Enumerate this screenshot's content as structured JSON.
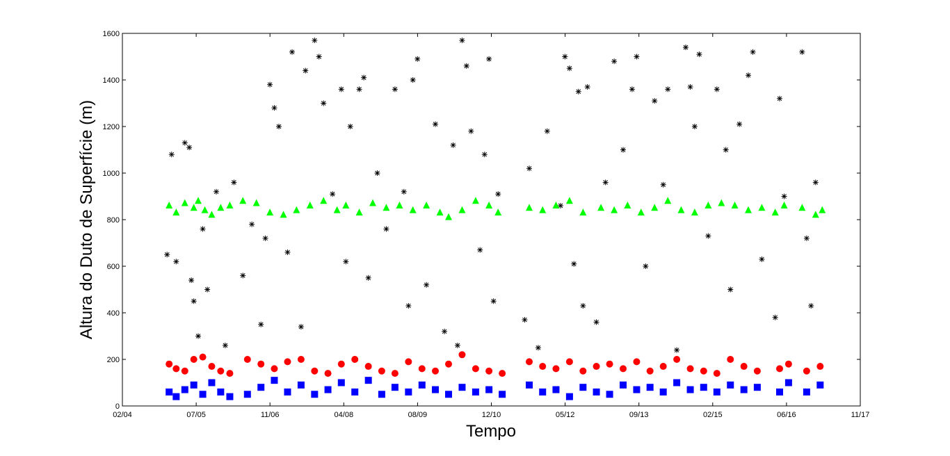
{
  "chart_data": {
    "type": "scatter",
    "title": "",
    "xlabel": "Tempo",
    "ylabel": "Altura do Duto de Superfície (m)",
    "xlim": [
      "2004-02-01",
      "2017-11-01"
    ],
    "ylim": [
      0,
      1600
    ],
    "x_ticks": [
      "02/04",
      "07/05",
      "11/06",
      "04/08",
      "08/09",
      "12/10",
      "05/12",
      "09/13",
      "02/15",
      "06/16",
      "11/17"
    ],
    "y_ticks": [
      0,
      200,
      400,
      600,
      800,
      1000,
      1200,
      1400,
      1600
    ],
    "grid": false,
    "legend": "none",
    "colors": {
      "green": "#00ff00",
      "red": "#ff0000",
      "blue": "#0000ff",
      "black": "#000000"
    },
    "series": [
      {
        "marker": "triangle",
        "color": "#00ff00",
        "points": [
          [
            "2004-12-15",
            860
          ],
          [
            "2005-02-01",
            830
          ],
          [
            "2005-04-01",
            870
          ],
          [
            "2005-06-01",
            850
          ],
          [
            "2005-07-01",
            880
          ],
          [
            "2005-08-15",
            840
          ],
          [
            "2005-10-01",
            820
          ],
          [
            "2005-12-01",
            850
          ],
          [
            "2006-02-01",
            860
          ],
          [
            "2006-05-01",
            880
          ],
          [
            "2006-08-01",
            870
          ],
          [
            "2006-11-01",
            830
          ],
          [
            "2007-02-01",
            820
          ],
          [
            "2007-05-01",
            840
          ],
          [
            "2007-08-01",
            860
          ],
          [
            "2007-11-01",
            880
          ],
          [
            "2008-02-01",
            840
          ],
          [
            "2008-04-01",
            860
          ],
          [
            "2008-07-01",
            830
          ],
          [
            "2008-10-01",
            870
          ],
          [
            "2009-01-01",
            850
          ],
          [
            "2009-04-01",
            860
          ],
          [
            "2009-07-01",
            840
          ],
          [
            "2009-10-01",
            860
          ],
          [
            "2010-01-01",
            830
          ],
          [
            "2010-03-01",
            810
          ],
          [
            "2010-06-01",
            840
          ],
          [
            "2010-09-01",
            880
          ],
          [
            "2010-12-01",
            860
          ],
          [
            "2011-02-01",
            830
          ],
          [
            "2011-09-01",
            850
          ],
          [
            "2011-12-01",
            840
          ],
          [
            "2012-03-01",
            860
          ],
          [
            "2012-06-01",
            880
          ],
          [
            "2012-09-01",
            830
          ],
          [
            "2013-01-01",
            850
          ],
          [
            "2013-04-01",
            840
          ],
          [
            "2013-07-01",
            860
          ],
          [
            "2013-10-01",
            830
          ],
          [
            "2014-01-01",
            850
          ],
          [
            "2014-04-01",
            880
          ],
          [
            "2014-07-01",
            840
          ],
          [
            "2014-10-01",
            830
          ],
          [
            "2015-01-01",
            860
          ],
          [
            "2015-04-01",
            870
          ],
          [
            "2015-07-01",
            860
          ],
          [
            "2015-10-01",
            840
          ],
          [
            "2016-01-01",
            850
          ],
          [
            "2016-04-01",
            830
          ],
          [
            "2016-06-01",
            860
          ],
          [
            "2016-10-01",
            850
          ],
          [
            "2017-01-01",
            820
          ],
          [
            "2017-02-15",
            840
          ]
        ]
      },
      {
        "marker": "circle",
        "color": "#ff0000",
        "points": [
          [
            "2004-12-15",
            180
          ],
          [
            "2005-02-01",
            160
          ],
          [
            "2005-04-01",
            150
          ],
          [
            "2005-06-01",
            200
          ],
          [
            "2005-08-01",
            210
          ],
          [
            "2005-10-01",
            170
          ],
          [
            "2005-12-01",
            150
          ],
          [
            "2006-02-01",
            140
          ],
          [
            "2006-06-01",
            200
          ],
          [
            "2006-09-01",
            180
          ],
          [
            "2006-12-01",
            160
          ],
          [
            "2007-03-01",
            190
          ],
          [
            "2007-06-01",
            200
          ],
          [
            "2007-09-01",
            150
          ],
          [
            "2007-12-01",
            140
          ],
          [
            "2008-03-01",
            180
          ],
          [
            "2008-06-01",
            200
          ],
          [
            "2008-09-01",
            170
          ],
          [
            "2008-12-01",
            150
          ],
          [
            "2009-03-01",
            140
          ],
          [
            "2009-06-01",
            190
          ],
          [
            "2009-09-01",
            160
          ],
          [
            "2009-12-01",
            150
          ],
          [
            "2010-03-01",
            180
          ],
          [
            "2010-06-01",
            220
          ],
          [
            "2010-09-01",
            160
          ],
          [
            "2010-12-01",
            150
          ],
          [
            "2011-03-01",
            140
          ],
          [
            "2011-09-01",
            190
          ],
          [
            "2011-12-01",
            170
          ],
          [
            "2012-03-01",
            160
          ],
          [
            "2012-06-01",
            190
          ],
          [
            "2012-09-01",
            150
          ],
          [
            "2012-12-01",
            170
          ],
          [
            "2013-03-01",
            180
          ],
          [
            "2013-06-01",
            160
          ],
          [
            "2013-09-01",
            190
          ],
          [
            "2013-12-01",
            150
          ],
          [
            "2014-03-01",
            170
          ],
          [
            "2014-06-01",
            200
          ],
          [
            "2014-09-01",
            160
          ],
          [
            "2014-12-01",
            150
          ],
          [
            "2015-03-01",
            140
          ],
          [
            "2015-06-01",
            200
          ],
          [
            "2015-09-01",
            170
          ],
          [
            "2015-12-01",
            150
          ],
          [
            "2016-05-01",
            160
          ],
          [
            "2016-07-01",
            180
          ],
          [
            "2016-11-01",
            150
          ],
          [
            "2017-02-01",
            170
          ]
        ]
      },
      {
        "marker": "square",
        "color": "#0000ff",
        "points": [
          [
            "2004-12-15",
            60
          ],
          [
            "2005-02-01",
            40
          ],
          [
            "2005-04-01",
            70
          ],
          [
            "2005-06-01",
            90
          ],
          [
            "2005-08-01",
            50
          ],
          [
            "2005-10-01",
            100
          ],
          [
            "2005-12-01",
            60
          ],
          [
            "2006-02-01",
            40
          ],
          [
            "2006-06-01",
            50
          ],
          [
            "2006-09-01",
            80
          ],
          [
            "2006-12-01",
            110
          ],
          [
            "2007-03-01",
            60
          ],
          [
            "2007-06-01",
            90
          ],
          [
            "2007-09-01",
            50
          ],
          [
            "2007-12-01",
            70
          ],
          [
            "2008-03-01",
            100
          ],
          [
            "2008-06-01",
            60
          ],
          [
            "2008-09-01",
            110
          ],
          [
            "2008-12-01",
            50
          ],
          [
            "2009-03-01",
            80
          ],
          [
            "2009-06-01",
            60
          ],
          [
            "2009-09-01",
            90
          ],
          [
            "2009-12-01",
            70
          ],
          [
            "2010-03-01",
            50
          ],
          [
            "2010-06-01",
            80
          ],
          [
            "2010-09-01",
            60
          ],
          [
            "2010-12-01",
            70
          ],
          [
            "2011-03-01",
            50
          ],
          [
            "2011-09-01",
            90
          ],
          [
            "2011-12-01",
            60
          ],
          [
            "2012-03-01",
            70
          ],
          [
            "2012-06-01",
            40
          ],
          [
            "2012-09-01",
            80
          ],
          [
            "2012-12-01",
            60
          ],
          [
            "2013-03-01",
            50
          ],
          [
            "2013-06-01",
            90
          ],
          [
            "2013-09-01",
            70
          ],
          [
            "2013-12-01",
            80
          ],
          [
            "2014-03-01",
            60
          ],
          [
            "2014-06-01",
            100
          ],
          [
            "2014-09-01",
            70
          ],
          [
            "2014-12-01",
            80
          ],
          [
            "2015-03-01",
            60
          ],
          [
            "2015-06-01",
            90
          ],
          [
            "2015-09-01",
            70
          ],
          [
            "2015-12-01",
            80
          ],
          [
            "2016-05-01",
            60
          ],
          [
            "2016-07-01",
            100
          ],
          [
            "2016-11-01",
            60
          ],
          [
            "2017-02-01",
            90
          ]
        ]
      },
      {
        "marker": "asterisk",
        "color": "#000000",
        "points": [
          [
            "2004-12-01",
            650
          ],
          [
            "2005-01-01",
            1080
          ],
          [
            "2005-02-01",
            620
          ],
          [
            "2005-04-01",
            1130
          ],
          [
            "2005-05-01",
            1110
          ],
          [
            "2005-05-15",
            540
          ],
          [
            "2005-06-01",
            450
          ],
          [
            "2005-07-01",
            300
          ],
          [
            "2005-08-01",
            760
          ],
          [
            "2005-09-01",
            500
          ],
          [
            "2005-11-01",
            920
          ],
          [
            "2006-01-01",
            260
          ],
          [
            "2006-03-01",
            960
          ],
          [
            "2006-05-01",
            560
          ],
          [
            "2006-07-01",
            780
          ],
          [
            "2006-09-01",
            350
          ],
          [
            "2006-10-01",
            720
          ],
          [
            "2006-11-01",
            1380
          ],
          [
            "2006-12-01",
            1280
          ],
          [
            "2007-01-01",
            1200
          ],
          [
            "2007-03-01",
            660
          ],
          [
            "2007-04-01",
            1520
          ],
          [
            "2007-06-01",
            340
          ],
          [
            "2007-07-01",
            1440
          ],
          [
            "2007-09-01",
            1570
          ],
          [
            "2007-10-01",
            1500
          ],
          [
            "2007-11-01",
            1300
          ],
          [
            "2008-01-01",
            910
          ],
          [
            "2008-03-01",
            1360
          ],
          [
            "2008-04-01",
            620
          ],
          [
            "2008-05-01",
            1200
          ],
          [
            "2008-07-01",
            1360
          ],
          [
            "2008-08-01",
            1410
          ],
          [
            "2008-09-01",
            550
          ],
          [
            "2008-11-01",
            1000
          ],
          [
            "2009-01-01",
            760
          ],
          [
            "2009-03-01",
            1360
          ],
          [
            "2009-05-01",
            920
          ],
          [
            "2009-06-01",
            430
          ],
          [
            "2009-07-01",
            1400
          ],
          [
            "2009-08-01",
            1490
          ],
          [
            "2009-10-01",
            520
          ],
          [
            "2009-12-01",
            1210
          ],
          [
            "2010-02-01",
            320
          ],
          [
            "2010-04-01",
            1120
          ],
          [
            "2010-05-01",
            260
          ],
          [
            "2010-06-01",
            1570
          ],
          [
            "2010-07-01",
            1460
          ],
          [
            "2010-08-01",
            1180
          ],
          [
            "2010-10-01",
            670
          ],
          [
            "2010-11-01",
            1080
          ],
          [
            "2010-12-01",
            1490
          ],
          [
            "2011-01-01",
            450
          ],
          [
            "2011-02-01",
            910
          ],
          [
            "2011-08-01",
            370
          ],
          [
            "2011-09-01",
            1020
          ],
          [
            "2011-11-01",
            250
          ],
          [
            "2012-01-01",
            1180
          ],
          [
            "2012-04-01",
            860
          ],
          [
            "2012-05-01",
            1500
          ],
          [
            "2012-06-01",
            1450
          ],
          [
            "2012-07-01",
            610
          ],
          [
            "2012-08-01",
            1350
          ],
          [
            "2012-09-01",
            430
          ],
          [
            "2012-10-01",
            1370
          ],
          [
            "2012-12-01",
            360
          ],
          [
            "2013-02-01",
            960
          ],
          [
            "2013-04-01",
            1480
          ],
          [
            "2013-06-01",
            1100
          ],
          [
            "2013-08-01",
            1360
          ],
          [
            "2013-09-01",
            1500
          ],
          [
            "2013-11-01",
            600
          ],
          [
            "2014-01-01",
            1310
          ],
          [
            "2014-03-01",
            950
          ],
          [
            "2014-04-01",
            1360
          ],
          [
            "2014-06-01",
            240
          ],
          [
            "2014-08-01",
            1540
          ],
          [
            "2014-09-01",
            1370
          ],
          [
            "2014-10-01",
            1200
          ],
          [
            "2014-11-01",
            1510
          ],
          [
            "2015-01-01",
            730
          ],
          [
            "2015-03-01",
            1360
          ],
          [
            "2015-05-01",
            1100
          ],
          [
            "2015-06-01",
            500
          ],
          [
            "2015-08-01",
            1210
          ],
          [
            "2015-10-01",
            1420
          ],
          [
            "2015-11-01",
            1520
          ],
          [
            "2016-01-01",
            630
          ],
          [
            "2016-04-01",
            380
          ],
          [
            "2016-05-01",
            1320
          ],
          [
            "2016-06-01",
            900
          ],
          [
            "2016-10-01",
            1520
          ],
          [
            "2016-11-01",
            720
          ],
          [
            "2016-12-01",
            430
          ],
          [
            "2017-01-01",
            960
          ]
        ]
      }
    ]
  }
}
